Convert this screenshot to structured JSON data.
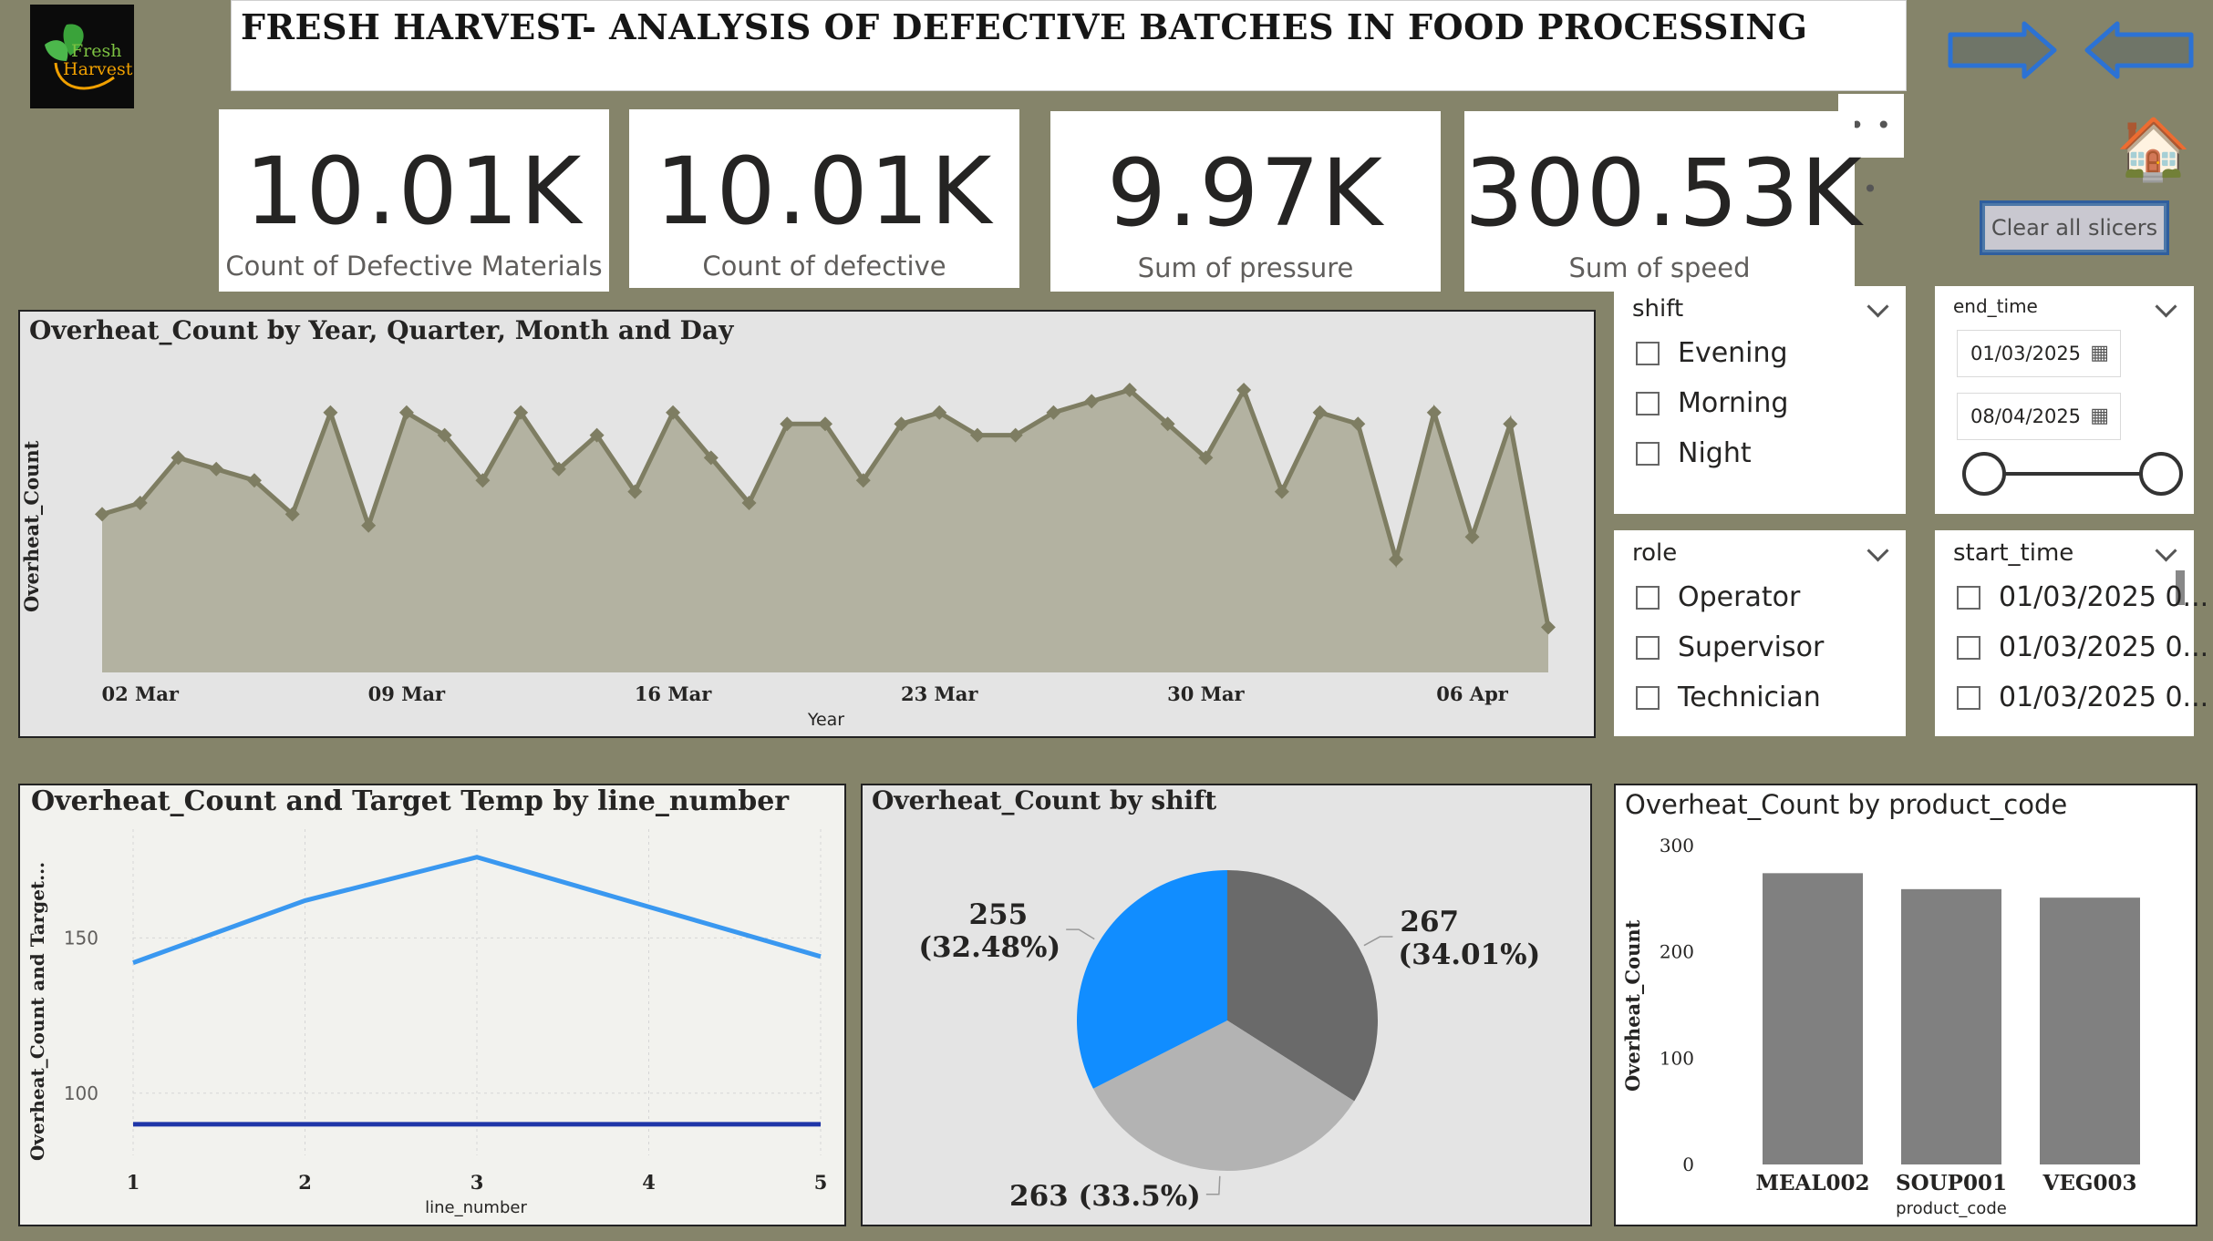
{
  "header": {
    "title": "FRESH HARVEST- ANALYSIS OF DEFECTIVE BATCHES IN FOOD PROCESSING",
    "logo_text_1": "Fresh",
    "logo_text_2": "Harvest"
  },
  "nav": {
    "forward_icon": "arrow-right-icon",
    "back_icon": "arrow-left-icon",
    "home_icon": "home-icon",
    "home_glyph": "🏠",
    "more_glyph": "• • •",
    "clear_label": "Clear all slicers"
  },
  "kpis": [
    {
      "value": "10.01K",
      "label": "Count of Defective Materials"
    },
    {
      "value": "10.01K",
      "label": "Count of defective"
    },
    {
      "value": "9.97K",
      "label": "Sum of pressure"
    },
    {
      "value": "300.53K",
      "label": "Sum of speed"
    }
  ],
  "slicers": {
    "shift": {
      "title": "shift",
      "options": [
        "Evening",
        "Morning",
        "Night"
      ]
    },
    "role": {
      "title": "role",
      "options": [
        "Operator",
        "Supervisor",
        "Technician"
      ]
    },
    "end_time": {
      "title": "end_time",
      "from": "01/03/2025",
      "to": "08/04/2025",
      "cal_glyph": "▦"
    },
    "start_time": {
      "title": "start_time",
      "options": [
        "01/03/2025 0...",
        "01/03/2025 0...",
        "01/03/2025 0..."
      ]
    }
  },
  "colors": {
    "background": "#85846a",
    "area_line": "#7e7d62",
    "area_fill": "#b3b2a1",
    "line_light": "#3a98f0",
    "line_dark": "#1f36a8",
    "pie_blue": "#118dff",
    "pie_dark": "#6a6a6a",
    "pie_light": "#b3b3b3",
    "bar": "#808080"
  },
  "chart_data": [
    {
      "type": "area",
      "title": "Overheat_Count by Year, Quarter, Month and Day",
      "xlabel": "Year",
      "ylabel": "Overheat_Count",
      "tick_labels": [
        "02 Mar",
        "09 Mar",
        "16 Mar",
        "23 Mar",
        "30 Mar",
        "06 Apr"
      ],
      "x": [
        "2025-03-01",
        "2025-03-02",
        "2025-03-03",
        "2025-03-04",
        "2025-03-05",
        "2025-03-06",
        "2025-03-07",
        "2025-03-08",
        "2025-03-09",
        "2025-03-10",
        "2025-03-11",
        "2025-03-12",
        "2025-03-13",
        "2025-03-14",
        "2025-03-15",
        "2025-03-16",
        "2025-03-17",
        "2025-03-18",
        "2025-03-19",
        "2025-03-20",
        "2025-03-21",
        "2025-03-22",
        "2025-03-23",
        "2025-03-24",
        "2025-03-25",
        "2025-03-26",
        "2025-03-27",
        "2025-03-28",
        "2025-03-29",
        "2025-03-30",
        "2025-03-31",
        "2025-04-01",
        "2025-04-02",
        "2025-04-03",
        "2025-04-04",
        "2025-04-05",
        "2025-04-06",
        "2025-04-07",
        "2025-04-08"
      ],
      "values": [
        14,
        15,
        19,
        18,
        17,
        14,
        23,
        13,
        23,
        21,
        17,
        23,
        18,
        21,
        16,
        23,
        19,
        15,
        22,
        22,
        17,
        22,
        23,
        21,
        21,
        23,
        24,
        25,
        22,
        19,
        25,
        16,
        23,
        22,
        10,
        23,
        12,
        22,
        4
      ],
      "ylim": [
        0,
        30
      ],
      "grid": false
    },
    {
      "type": "line",
      "title": "Overheat_Count and Target Temp by line_number",
      "xlabel": "line_number",
      "ylabel": "Overheat_Count and Target...",
      "x": [
        1,
        2,
        3,
        4,
        5
      ],
      "series": [
        {
          "values": [
            142,
            162,
            176,
            160,
            144
          ]
        },
        {
          "values": [
            90,
            90,
            90,
            90,
            90
          ]
        }
      ],
      "yticks": [
        100,
        150
      ],
      "ylim": [
        80,
        185
      ],
      "grid": true
    },
    {
      "type": "pie",
      "title": "Overheat_Count by shift",
      "slices": [
        {
          "value": 267,
          "label": "267",
          "pct": "(34.01%)"
        },
        {
          "value": 263,
          "label": "263 (33.5%)",
          "pct": ""
        },
        {
          "value": 255,
          "label": "255",
          "pct": "(32.48%)"
        }
      ]
    },
    {
      "type": "bar",
      "title": "Overheat_Count by product_code",
      "xlabel": "product_code",
      "ylabel": "Overheat_Count",
      "categories": [
        "MEAL002",
        "SOUP001",
        "VEG003"
      ],
      "values": [
        274,
        259,
        251
      ],
      "yticks": [
        0,
        100,
        200,
        300
      ],
      "ylim": [
        0,
        300
      ]
    }
  ]
}
